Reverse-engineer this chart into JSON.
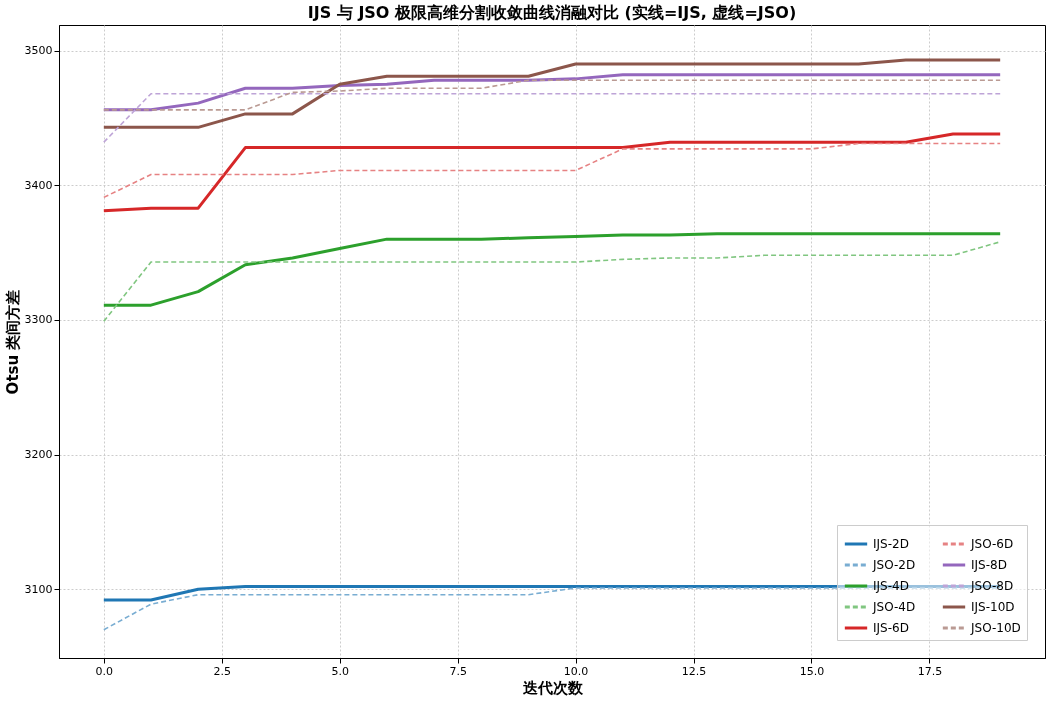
{
  "chart_data": {
    "type": "line",
    "title": "IJS 与 JSO 极限高维分割收敛曲线消融对比 (实线=IJS, 虚线=JSO)",
    "xlabel": "迭代次数",
    "ylabel": "Otsu 类间方差",
    "x": [
      0,
      1,
      2,
      3,
      4,
      5,
      6,
      7,
      8,
      9,
      10,
      11,
      12,
      13,
      14,
      15,
      16,
      17,
      18,
      19
    ],
    "series": [
      {
        "name": "IJS-2D",
        "color": "#1f77b4",
        "line_style": "solid",
        "values": [
          3092,
          3092,
          3100,
          3102,
          3102,
          3102,
          3102,
          3102,
          3102,
          3102,
          3102,
          3102,
          3102,
          3102,
          3102,
          3102,
          3102,
          3102,
          3102,
          3102
        ]
      },
      {
        "name": "JSO-2D",
        "color": "#79add2",
        "line_style": "dashed",
        "values": [
          3070,
          3089,
          3096,
          3096,
          3096,
          3096,
          3096,
          3096,
          3096,
          3096,
          3101,
          3101,
          3101,
          3101,
          3101,
          3101,
          3101,
          3101,
          3101,
          3101
        ]
      },
      {
        "name": "IJS-4D",
        "color": "#2ca02c",
        "line_style": "solid",
        "values": [
          3311,
          3311,
          3321,
          3341,
          3346,
          3353,
          3360,
          3360,
          3360,
          3361,
          3362,
          3363,
          3363,
          3364,
          3364,
          3364,
          3364,
          3364,
          3364,
          3364
        ]
      },
      {
        "name": "JSO-4D",
        "color": "#80c680",
        "line_style": "dashed",
        "values": [
          3299,
          3343,
          3343,
          3343,
          3343,
          3343,
          3343,
          3343,
          3343,
          3343,
          3343,
          3345,
          3346,
          3346,
          3348,
          3348,
          3348,
          3348,
          3348,
          3358
        ]
      },
      {
        "name": "IJS-6D",
        "color": "#d62728",
        "line_style": "solid",
        "values": [
          3381,
          3383,
          3383,
          3428,
          3428,
          3428,
          3428,
          3428,
          3428,
          3428,
          3428,
          3428,
          3432,
          3432,
          3432,
          3432,
          3432,
          3432,
          3438,
          3438
        ]
      },
      {
        "name": "JSO-6D",
        "color": "#e68283",
        "line_style": "dashed",
        "values": [
          3391,
          3408,
          3408,
          3408,
          3408,
          3411,
          3411,
          3411,
          3411,
          3411,
          3411,
          3427,
          3427,
          3427,
          3427,
          3427,
          3431,
          3431,
          3431,
          3431
        ]
      },
      {
        "name": "IJS-8D",
        "color": "#9467bd",
        "line_style": "solid",
        "values": [
          3456,
          3456,
          3461,
          3472,
          3472,
          3474,
          3475,
          3478,
          3478,
          3478,
          3479,
          3482,
          3482,
          3482,
          3482,
          3482,
          3482,
          3482,
          3482,
          3482
        ]
      },
      {
        "name": "JSO-8D",
        "color": "#bea4d7",
        "line_style": "dashed",
        "values": [
          3432,
          3468,
          3468,
          3468,
          3468,
          3468,
          3468,
          3468,
          3468,
          3468,
          3468,
          3468,
          3468,
          3468,
          3468,
          3468,
          3468,
          3468,
          3468,
          3468
        ]
      },
      {
        "name": "IJS-10D",
        "color": "#8c564b",
        "line_style": "solid",
        "values": [
          3443,
          3443,
          3443,
          3453,
          3453,
          3475,
          3481,
          3481,
          3481,
          3481,
          3490,
          3490,
          3490,
          3490,
          3490,
          3490,
          3490,
          3493,
          3493,
          3493
        ]
      },
      {
        "name": "JSO-10D",
        "color": "#ba9a93",
        "line_style": "dashed",
        "values": [
          3456,
          3456,
          3456,
          3456,
          3469,
          3470,
          3472,
          3472,
          3472,
          3478,
          3478,
          3478,
          3478,
          3478,
          3478,
          3478,
          3478,
          3478,
          3478,
          3478
        ]
      }
    ],
    "xlim": [
      -0.95,
      19.95
    ],
    "ylim": [
      3049,
      3519
    ],
    "xticks": [
      {
        "value": 0,
        "label": "0.0"
      },
      {
        "value": 2.5,
        "label": "2.5"
      },
      {
        "value": 5,
        "label": "5.0"
      },
      {
        "value": 7.5,
        "label": "7.5"
      },
      {
        "value": 10,
        "label": "10.0"
      },
      {
        "value": 12.5,
        "label": "12.5"
      },
      {
        "value": 15,
        "label": "15.0"
      },
      {
        "value": 17.5,
        "label": "17.5"
      }
    ],
    "yticks": [
      3100,
      3200,
      3300,
      3400,
      3500
    ],
    "grid": true,
    "legend": "bottom right",
    "marker": "none"
  }
}
